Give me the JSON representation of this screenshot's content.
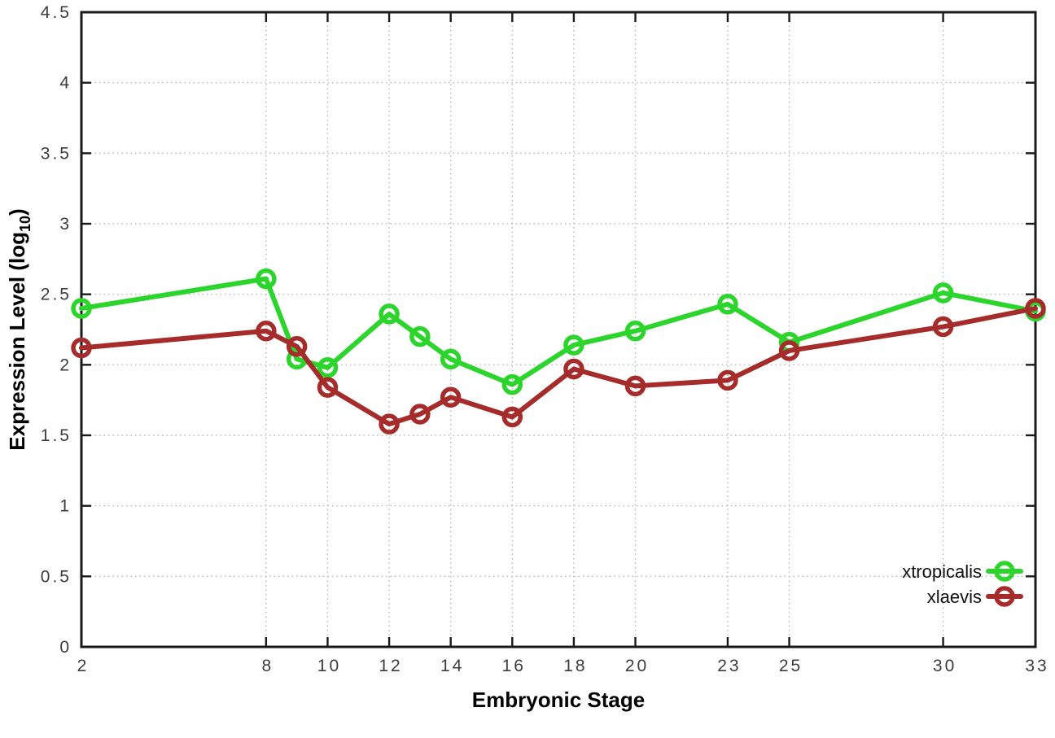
{
  "figure": {
    "background": "#ffffff",
    "xlabel": "Embryonic Stage",
    "ylabel_main": "Expression Level (log",
    "ylabel_sub": "10",
    "ylabel_close": ")"
  },
  "chart_data": {
    "type": "line",
    "x": [
      2,
      8,
      9,
      10,
      12,
      13,
      14,
      16,
      18,
      20,
      23,
      25,
      30,
      33
    ],
    "series": [
      {
        "name": "xtropicalis",
        "color": "#2bd52b",
        "marker": "open-circle",
        "values": [
          2.4,
          2.61,
          2.04,
          1.98,
          2.36,
          2.2,
          2.04,
          1.86,
          2.14,
          2.24,
          2.43,
          2.16,
          2.51,
          2.38
        ]
      },
      {
        "name": "xlaevis",
        "color": "#a62c2c",
        "marker": "open-circle",
        "values": [
          2.12,
          2.24,
          2.13,
          1.84,
          1.58,
          1.65,
          1.77,
          1.63,
          1.97,
          1.85,
          1.89,
          2.1,
          2.27,
          2.4
        ]
      }
    ],
    "title": "",
    "xlabel": "Embryonic Stage",
    "ylabel": "Expression Level (log10)",
    "xlim": [
      2,
      33
    ],
    "ylim": [
      0,
      4.5
    ],
    "x_ticks": [
      2,
      8,
      10,
      12,
      14,
      16,
      18,
      20,
      23,
      25,
      30,
      33
    ],
    "y_ticks": [
      0,
      0.5,
      1,
      1.5,
      2,
      2.5,
      3,
      3.5,
      4,
      4.5
    ],
    "grid": true,
    "grid_style": "dotted",
    "legend_position": "bottom-right"
  },
  "colors": {
    "grid": "#b8b8b8",
    "border": "#1a1a1a",
    "tick": "#1a1a1a",
    "tick_label": "#3c3c3c"
  }
}
